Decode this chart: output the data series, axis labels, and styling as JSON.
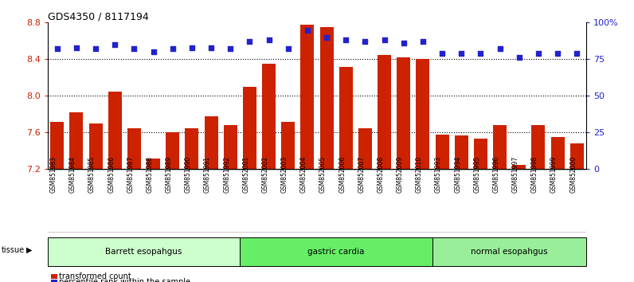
{
  "title": "GDS4350 / 8117194",
  "samples": [
    "GSM851983",
    "GSM851984",
    "GSM851985",
    "GSM851986",
    "GSM851987",
    "GSM851988",
    "GSM851989",
    "GSM851990",
    "GSM851991",
    "GSM851992",
    "GSM852001",
    "GSM852002",
    "GSM852003",
    "GSM852004",
    "GSM852005",
    "GSM852006",
    "GSM852007",
    "GSM852008",
    "GSM852009",
    "GSM852010",
    "GSM851993",
    "GSM851994",
    "GSM851995",
    "GSM851996",
    "GSM851997",
    "GSM851998",
    "GSM851999",
    "GSM852000"
  ],
  "bar_values": [
    7.72,
    7.82,
    7.7,
    8.05,
    7.65,
    7.32,
    7.6,
    7.65,
    7.78,
    7.68,
    8.1,
    8.35,
    7.72,
    8.78,
    8.75,
    8.32,
    7.65,
    8.45,
    8.42,
    8.4,
    7.58,
    7.57,
    7.53,
    7.68,
    7.25,
    7.68,
    7.55,
    7.48
  ],
  "percentile_values": [
    82,
    83,
    82,
    85,
    82,
    80,
    82,
    83,
    83,
    82,
    87,
    88,
    82,
    95,
    90,
    88,
    87,
    88,
    86,
    87,
    79,
    79,
    79,
    82,
    76,
    79,
    79,
    79
  ],
  "groups": [
    {
      "label": "Barrett esopahgus",
      "start": 0,
      "end": 10,
      "color": "#ccffcc"
    },
    {
      "label": "gastric cardia",
      "start": 10,
      "end": 20,
      "color": "#66ee66"
    },
    {
      "label": "normal esopahgus",
      "start": 20,
      "end": 28,
      "color": "#99ee99"
    }
  ],
  "bar_color": "#cc2200",
  "dot_color": "#2222cc",
  "ylim_left": [
    7.2,
    8.8
  ],
  "ylim_right": [
    0,
    100
  ],
  "yticks_left": [
    7.2,
    7.6,
    8.0,
    8.4,
    8.8
  ],
  "yticks_right": [
    0,
    25,
    50,
    75,
    100
  ],
  "ytick_labels_right": [
    "0",
    "25",
    "50",
    "75",
    "100%"
  ],
  "grid_values": [
    7.6,
    8.0,
    8.4
  ],
  "tick_color_left": "#cc2200",
  "tick_color_right": "#2222cc"
}
